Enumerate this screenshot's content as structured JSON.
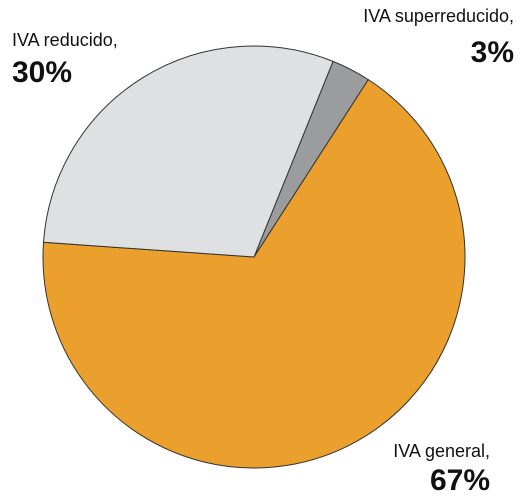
{
  "chart_data": {
    "type": "pie",
    "categories": [
      "IVA superreducido,",
      "IVA general,",
      "IVA reducido,"
    ],
    "values": [
      3,
      67,
      30
    ],
    "value_labels": [
      "3%",
      "67%",
      "30%"
    ],
    "colors": [
      "#9b9c9e",
      "#eb9f2d",
      "#dfe0e2"
    ]
  }
}
